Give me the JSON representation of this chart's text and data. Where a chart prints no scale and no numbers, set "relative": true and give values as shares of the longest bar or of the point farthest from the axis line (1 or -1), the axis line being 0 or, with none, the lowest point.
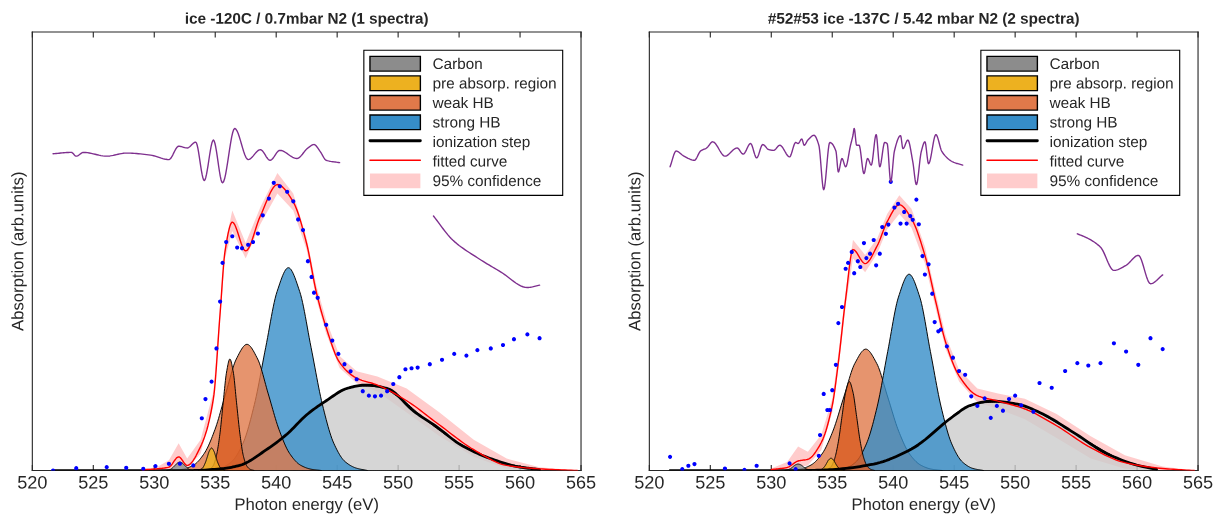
{
  "chart_data": [
    {
      "type": "area",
      "relative": true,
      "title": "ice -120C / 0.7mbar N2 (1 spectra)",
      "xlabel": "Photon energy (eV)",
      "ylabel": "Absorption (arb.units)",
      "xlim": [
        520,
        565
      ],
      "xticks": [
        520,
        525,
        530,
        535,
        540,
        545,
        550,
        555,
        560,
        565
      ],
      "tick_labels": "x",
      "legend": "top right",
      "grid": false,
      "annotations": [
        "95% confidence"
      ],
      "series": [
        {
          "type": "area",
          "color": "#cccccc",
          "x": [
            536.0,
            538.0,
            540.0,
            542.0,
            544.9,
            546.5,
            548.2,
            550.2,
            552.2,
            554.1,
            556.3,
            558.7,
            561.6
          ],
          "values": [
            0.009,
            0.035,
            0.082,
            0.145,
            0.222,
            0.247,
            0.247,
            0.21,
            0.15,
            0.1,
            0.055,
            0.022,
            0.003
          ]
        },
        {
          "type": "area",
          "name": "Carbon",
          "color": "#8c8c8c",
          "x": [
            531.0,
            531.3,
            531.5,
            531.7,
            531.9,
            532.1,
            532.3,
            532.5,
            532.7,
            532.9,
            533.2
          ],
          "values": [
            0,
            0.003,
            0.008,
            0.015,
            0.022,
            0.025,
            0.022,
            0.015,
            0.008,
            0.003,
            0
          ]
        },
        {
          "type": "area",
          "name": "pre absorp. region",
          "color": "#edb120",
          "x": [
            533.6,
            533.95,
            534.2,
            534.35,
            534.5,
            534.7,
            534.9,
            535.05,
            535.2,
            535.45,
            535.8
          ],
          "values": [
            0,
            0.007,
            0.024,
            0.04,
            0.056,
            0.066,
            0.056,
            0.04,
            0.024,
            0.007,
            0
          ]
        },
        {
          "type": "area",
          "name": "weak HB",
          "color": "#e0794a",
          "x": [
            531.5,
            532.35,
            533.23,
            534.1,
            534.98,
            535.85,
            536.73,
            537.6,
            538.48,
            539.35,
            540.23,
            541.1,
            541.98,
            542.85,
            543.73
          ],
          "values": [
            0,
            0.004,
            0.016,
            0.05,
            0.12,
            0.224,
            0.326,
            0.369,
            0.326,
            0.224,
            0.12,
            0.05,
            0.016,
            0.004,
            0
          ]
        },
        {
          "type": "area",
          "color": "#d95b20",
          "x": [
            534.2,
            534.55,
            534.83,
            535.1,
            535.38,
            535.65,
            535.93,
            536.2,
            536.48,
            536.75,
            537.03,
            537.3,
            537.58,
            537.85,
            538.2
          ],
          "values": [
            0,
            0.004,
            0.014,
            0.044,
            0.106,
            0.198,
            0.288,
            0.326,
            0.288,
            0.198,
            0.106,
            0.044,
            0.014,
            0.004,
            0
          ]
        },
        {
          "type": "area",
          "name": "strong HB",
          "color": "#368dc8",
          "x": [
            534.49,
            535.42,
            536.35,
            537.28,
            538.21,
            539.14,
            540.07,
            541.0,
            541.93,
            542.86,
            543.79,
            544.72,
            545.65,
            546.58,
            547.51
          ],
          "values": [
            0,
            0.007,
            0.026,
            0.08,
            0.193,
            0.36,
            0.523,
            0.593,
            0.523,
            0.36,
            0.193,
            0.08,
            0.026,
            0.007,
            0
          ]
        },
        {
          "type": "line",
          "name": "ionization step",
          "color": "#000000",
          "x": [
            521.7,
            532.9,
            535.4,
            537.0,
            539.2,
            540.9,
            542.5,
            544.1,
            545.8,
            547.3,
            549.1,
            551.3,
            553.2,
            555.1,
            557.5,
            560.0,
            561.6
          ],
          "values": [
            0,
            0,
            0.005,
            0.015,
            0.061,
            0.107,
            0.163,
            0.204,
            0.24,
            0.25,
            0.24,
            0.173,
            0.127,
            0.076,
            0.036,
            0.01,
            0.003
          ]
        },
        {
          "type": "line",
          "name": "fitted curve",
          "color": "#ff0000",
          "x": [
            529.0,
            530.2,
            531.2,
            532.0,
            532.7,
            533.8,
            534.85,
            535.4,
            535.8,
            536.4,
            537.5,
            538.7,
            540.1,
            541.4,
            542.5,
            543.3,
            544.1,
            545.2,
            546.6,
            548.3,
            550.7,
            553.4,
            556.2,
            558.9,
            561.6,
            564.7
          ],
          "values": [
            0.002,
            0.005,
            0.01,
            0.04,
            0.015,
            0.07,
            0.21,
            0.46,
            0.64,
            0.726,
            0.642,
            0.744,
            0.836,
            0.785,
            0.663,
            0.52,
            0.418,
            0.316,
            0.27,
            0.25,
            0.204,
            0.133,
            0.061,
            0.015,
            0.005,
            0
          ],
          "lower": [
            0,
            0,
            0,
            0.01,
            0.005,
            0.05,
            0.19,
            0.44,
            0.62,
            0.7,
            0.62,
            0.72,
            0.81,
            0.76,
            0.645,
            0.5,
            0.4,
            0.3,
            0.255,
            0.23,
            0.17,
            0.1,
            0.04,
            0.005,
            0,
            0
          ],
          "upper": [
            0.004,
            0.01,
            0.03,
            0.08,
            0.035,
            0.09,
            0.23,
            0.48,
            0.66,
            0.76,
            0.665,
            0.77,
            0.87,
            0.81,
            0.68,
            0.54,
            0.44,
            0.335,
            0.29,
            0.275,
            0.24,
            0.17,
            0.09,
            0.035,
            0.01,
            0
          ]
        },
        {
          "type": "scatter",
          "color": "#0000ff",
          "x": [
            521.7,
            523.6,
            526.1,
            527.7,
            529.1,
            530.1,
            531.2,
            532.1,
            533.2,
            533.9,
            534.2,
            534.7,
            535.1,
            535.4,
            535.6,
            535.9,
            536.4,
            536.8,
            537.2,
            537.7,
            538.1,
            538.5,
            538.9,
            539.4,
            539.8,
            540.3,
            540.9,
            541.4,
            541.8,
            542.2,
            542.6,
            542.9,
            543.1,
            543.4,
            544.1,
            544.6,
            545.1,
            545.6,
            546.1,
            546.6,
            547.1,
            547.6,
            548.1,
            548.6,
            549.1,
            549.6,
            550.1,
            550.6,
            551.1,
            551.6,
            552.6,
            553.6,
            554.6,
            555.6,
            556.5,
            557.6,
            558.6,
            559.5,
            560.6,
            561.6
          ],
          "values": [
            0,
            0.007,
            0.01,
            0.008,
            0.005,
            0.013,
            0.02,
            0.02,
            0.015,
            0.153,
            0.209,
            0.26,
            0.357,
            0.494,
            0.607,
            0.668,
            0.685,
            0.652,
            0.65,
            0.66,
            0.668,
            0.693,
            0.746,
            0.795,
            0.841,
            0.831,
            0.815,
            0.787,
            0.734,
            0.703,
            0.612,
            0.566,
            0.52,
            0.505,
            0.426,
            0.38,
            0.341,
            0.311,
            0.29,
            0.267,
            0.232,
            0.219,
            0.217,
            0.219,
            0.232,
            0.253,
            0.273,
            0.296,
            0.299,
            0.301,
            0.311,
            0.324,
            0.341,
            0.336,
            0.352,
            0.357,
            0.367,
            0.384,
            0.398,
            0.387
          ]
        },
        {
          "type": "line",
          "color": "#7e2f8e",
          "x": [
            521.7,
            523.2,
            523.6,
            524.2,
            526.1,
            527.7,
            529.7,
            531.2,
            532.0,
            532.7,
            533.4,
            534.1,
            534.85,
            535.6,
            536.6,
            537.7,
            538.7,
            539.5,
            540.3,
            541.7,
            542.6,
            543.1,
            543.6,
            544.1,
            545.2,
            549.0,
            552.9,
            554.5,
            556.5,
            558.4,
            560.6,
            561.6
          ],
          "values": [
            0.926,
            0.93,
            0.919,
            0.93,
            0.919,
            0.928,
            0.922,
            0.909,
            0.948,
            0.943,
            0.96,
            0.848,
            0.966,
            0.841,
            1.0,
            0.909,
            0.938,
            0.907,
            0.936,
            0.912,
            0.943,
            0.953,
            0.933,
            0.907,
            0.9,
            null,
            0.744,
            0.673,
            0.622,
            0.581,
            0.535,
            0.542
          ]
        }
      ]
    },
    {
      "type": "area",
      "relative": true,
      "title": "#52#53 ice -137C / 5.42 mbar N2 (2 spectra)",
      "xlabel": "Photon energy (eV)",
      "ylabel": "Absorption (arb.units)",
      "xlim": [
        520,
        565
      ],
      "xticks": [
        520,
        525,
        530,
        535,
        540,
        545,
        550,
        555,
        560,
        565
      ],
      "tick_labels": "x",
      "legend": "top right",
      "grid": false,
      "annotations": [
        "95% confidence"
      ],
      "series": [
        {
          "type": "area",
          "color": "#cccccc",
          "x": [
            536.5,
            539.5,
            543.0,
            545.5,
            547.2,
            549.2,
            551.1,
            553.4,
            556.2,
            559.0,
            561.6
          ],
          "values": [
            0.009,
            0.033,
            0.1,
            0.175,
            0.198,
            0.2,
            0.183,
            0.14,
            0.08,
            0.028,
            0.004
          ]
        },
        {
          "type": "area",
          "name": "Carbon",
          "color": "#8c8c8c",
          "x": [
            531.1,
            531.4,
            531.6,
            531.8,
            532.0,
            532.2,
            532.4,
            532.6,
            532.8,
            533.0,
            533.3
          ],
          "values": [
            0,
            0.003,
            0.006,
            0.012,
            0.017,
            0.019,
            0.017,
            0.012,
            0.006,
            0.003,
            0
          ]
        },
        {
          "type": "area",
          "name": "pre absorp. region",
          "color": "#edb120",
          "x": [
            533.8,
            534.15,
            534.4,
            534.55,
            534.7,
            534.9,
            535.1,
            535.25,
            535.4,
            535.65,
            536.0
          ],
          "values": [
            0,
            0.004,
            0.013,
            0.022,
            0.031,
            0.036,
            0.031,
            0.022,
            0.013,
            0.004,
            0
          ]
        },
        {
          "type": "area",
          "name": "weak HB",
          "color": "#e0794a",
          "x": [
            531.45,
            532.35,
            533.25,
            534.15,
            535.05,
            535.95,
            536.85,
            537.75,
            538.65,
            539.55,
            540.45,
            541.35,
            542.25,
            543.15,
            544.05
          ],
          "values": [
            0,
            0.004,
            0.016,
            0.048,
            0.115,
            0.215,
            0.313,
            0.355,
            0.313,
            0.215,
            0.115,
            0.048,
            0.016,
            0.004,
            0
          ]
        },
        {
          "type": "area",
          "color": "#d95b20",
          "x": [
            534.3,
            534.6,
            534.9,
            535.2,
            535.5,
            535.8,
            536.1,
            536.4,
            536.7,
            537.0,
            537.3,
            537.6,
            537.9,
            538.2,
            538.5
          ],
          "values": [
            0,
            0.003,
            0.011,
            0.035,
            0.084,
            0.158,
            0.229,
            0.26,
            0.229,
            0.158,
            0.084,
            0.035,
            0.011,
            0.003,
            0
          ]
        },
        {
          "type": "area",
          "name": "strong HB",
          "color": "#368dc8",
          "x": [
            535.18,
            536.05,
            536.93,
            537.8,
            538.68,
            539.55,
            540.43,
            541.3,
            542.18,
            543.05,
            543.93,
            544.8,
            545.68,
            546.55,
            547.43
          ],
          "values": [
            0,
            0.006,
            0.025,
            0.078,
            0.186,
            0.348,
            0.507,
            0.574,
            0.507,
            0.348,
            0.186,
            0.078,
            0.025,
            0.006,
            0
          ]
        },
        {
          "type": "line",
          "name": "ionization step",
          "color": "#000000",
          "x": [
            521.7,
            532.5,
            535.0,
            538.4,
            541.5,
            544.9,
            546.3,
            548.1,
            550.2,
            552.0,
            554.8,
            557.6,
            560.4,
            561.6
          ],
          "values": [
            0,
            0,
            0.003,
            0.019,
            0.063,
            0.158,
            0.19,
            0.203,
            0.194,
            0.17,
            0.111,
            0.048,
            0.012,
            0.004
          ]
        },
        {
          "type": "line",
          "name": "fitted curve",
          "color": "#ff0000",
          "x": [
            530.0,
            531.3,
            532.2,
            533.0,
            534.1,
            535.0,
            535.5,
            536.1,
            536.7,
            537.7,
            538.7,
            539.5,
            540.5,
            541.5,
            542.6,
            543.5,
            544.3,
            545.4,
            546.9,
            548.6,
            550.8,
            553.4,
            556.2,
            559.0,
            562.1,
            564.7
          ],
          "values": [
            0.003,
            0.009,
            0.028,
            0.033,
            0.082,
            0.19,
            0.316,
            0.502,
            0.646,
            0.605,
            0.658,
            0.727,
            0.777,
            0.736,
            0.629,
            0.492,
            0.375,
            0.277,
            0.219,
            0.203,
            0.18,
            0.131,
            0.067,
            0.023,
            0.006,
            0
          ],
          "lower": [
            0,
            0,
            0.01,
            0.015,
            0.06,
            0.17,
            0.295,
            0.48,
            0.62,
            0.58,
            0.635,
            0.705,
            0.75,
            0.71,
            0.605,
            0.47,
            0.355,
            0.26,
            0.2,
            0.18,
            0.15,
            0.095,
            0.035,
            0.005,
            0,
            0
          ],
          "upper": [
            0.006,
            0.025,
            0.07,
            0.055,
            0.105,
            0.21,
            0.34,
            0.525,
            0.675,
            0.63,
            0.68,
            0.75,
            0.805,
            0.765,
            0.655,
            0.515,
            0.395,
            0.295,
            0.24,
            0.225,
            0.21,
            0.165,
            0.1,
            0.045,
            0.012,
            0
          ]
        },
        {
          "type": "scatter",
          "color": "#0000ff",
          "x": [
            521.7,
            522.7,
            523.2,
            523.7,
            526.2,
            527.8,
            528.8,
            531.5,
            532.0,
            533.9,
            534.0,
            534.3,
            534.6,
            534.8,
            535.0,
            535.3,
            535.5,
            535.8,
            536.1,
            536.3,
            536.6,
            536.8,
            537.1,
            537.3,
            537.6,
            537.8,
            538.1,
            538.4,
            538.6,
            538.9,
            539.1,
            539.4,
            539.6,
            539.8,
            540.1,
            540.4,
            540.6,
            540.9,
            541.1,
            541.4,
            541.6,
            541.9,
            542.1,
            542.4,
            542.6,
            542.9,
            543.2,
            543.4,
            543.7,
            543.9,
            544.4,
            544.9,
            545.4,
            545.9,
            546.4,
            546.9,
            547.5,
            548.0,
            548.5,
            549.0,
            549.5,
            550.0,
            550.5,
            551.5,
            552.0,
            553.0,
            554.1,
            555.1,
            556.0,
            557.0,
            558.1,
            559.1,
            560.1,
            561.1,
            562.1
          ],
          "values": [
            0.04,
            0.004,
            0.014,
            0.019,
            0.006,
            0.002,
            0.014,
            0.021,
            0.004,
            0.043,
            0.104,
            0.224,
            0.177,
            0.177,
            0.235,
            0.309,
            0.431,
            0.478,
            0.59,
            0.607,
            0.639,
            0.577,
            0.612,
            0.595,
            0.665,
            0.621,
            0.634,
            0.674,
            0.6,
            0.634,
            0.712,
            0.692,
            0.719,
            0.844,
            0.769,
            0.78,
            0.722,
            0.756,
            0.722,
            0.744,
            0.733,
            0.792,
            0.72,
            0.627,
            0.573,
            0.603,
            0.517,
            0.434,
            0.407,
            0.412,
            0.363,
            0.33,
            0.291,
            0.28,
            0.217,
            0.189,
            0.211,
            0.154,
            0.189,
            0.175,
            0.209,
            0.219,
            0.191,
            0.172,
            0.256,
            0.242,
            0.291,
            0.314,
            0.307,
            0.314,
            0.372,
            0.348,
            0.309,
            0.387,
            0.355
          ]
        },
        {
          "type": "line",
          "color": "#7e2f8e",
          "x": [
            521.7,
            522.2,
            522.8,
            523.7,
            524.2,
            524.7,
            525.2,
            526.2,
            527.2,
            527.7,
            528.3,
            528.8,
            529.3,
            529.8,
            530.2,
            530.7,
            531.5,
            532.0,
            532.2,
            532.5,
            532.7,
            533.0,
            533.5,
            533.9,
            534.3,
            534.8,
            535.3,
            535.5,
            535.8,
            536.1,
            536.5,
            536.7,
            536.8,
            537.0,
            537.2,
            537.6,
            537.9,
            538.2,
            538.6,
            538.9,
            539.3,
            539.5,
            539.8,
            540.1,
            540.6,
            540.8,
            541.2,
            541.6,
            541.9,
            542.3,
            542.6,
            542.9,
            543.5,
            544.0,
            544.9,
            545.7,
            548.0,
            555.1,
            555.9,
            557.0,
            558.1,
            559.1,
            560.1,
            561.1,
            562.1
          ],
          "values": [
            0.888,
            0.934,
            0.92,
            0.907,
            0.934,
            0.943,
            0.961,
            0.919,
            0.943,
            0.925,
            0.956,
            0.914,
            0.953,
            0.938,
            0.936,
            0.951,
            0.917,
            0.959,
            0.956,
            0.969,
            0.951,
            0.966,
            0.98,
            0.951,
            0.821,
            0.959,
            0.934,
            0.873,
            0.912,
            0.888,
            0.951,
            0.98,
            1.0,
            0.951,
            0.951,
            0.868,
            0.912,
            0.893,
            0.982,
            0.888,
            0.959,
            0.956,
            0.844,
            0.934,
            0.979,
            0.941,
            0.966,
            0.904,
            0.836,
            0.932,
            0.961,
            0.897,
            0.982,
            0.932,
            0.902,
            0.893,
            null,
            0.692,
            0.68,
            0.653,
            0.585,
            0.6,
            0.629,
            0.546,
            0.572
          ]
        }
      ]
    }
  ]
}
